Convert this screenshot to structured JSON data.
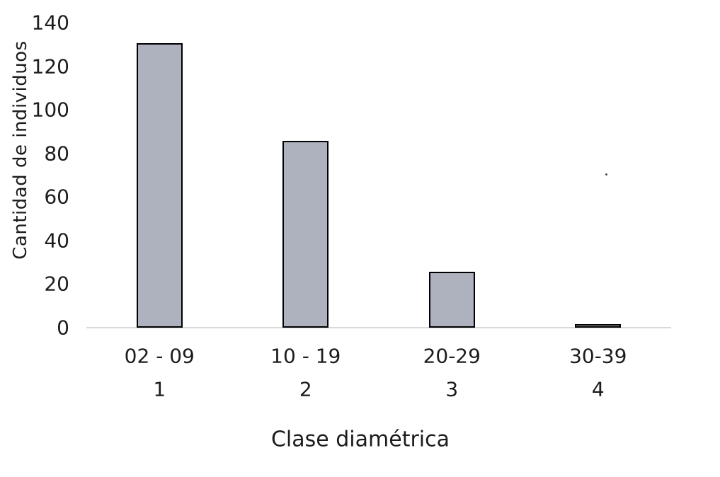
{
  "chart_data": {
    "type": "bar",
    "title": "",
    "categories": [
      "02 - 09",
      "10 - 19",
      "20-29",
      "30-39"
    ],
    "category_numbers": [
      "1",
      "2",
      "3",
      "4"
    ],
    "values": [
      130,
      85,
      25,
      1
    ],
    "xlabel": "Clase diamétrica",
    "ylabel": "Cantidad de individuos",
    "y_ticks": [
      0,
      20,
      40,
      60,
      80,
      100,
      120,
      140
    ],
    "ylim": [
      0,
      140
    ],
    "grid": false,
    "legend": false,
    "colors": {
      "bar_fill": "#ADB2BE",
      "bar_border": "#000000",
      "axis_line": "#D9D9D9",
      "text": "#1C1C1C"
    }
  }
}
